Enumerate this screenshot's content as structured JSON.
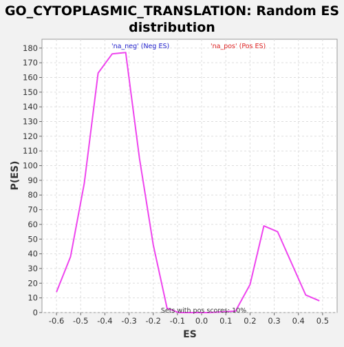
{
  "chart_data": {
    "type": "line",
    "title_lines": [
      "GO_CYTOPLASMIC_TRANSLATION: Random ES",
      "distribution"
    ],
    "xlabel": "ES",
    "ylabel": "P(ES)",
    "xlim": [
      -0.66,
      0.56
    ],
    "ylim": [
      0,
      186
    ],
    "x_ticks": [
      -0.6,
      -0.5,
      -0.4,
      -0.3,
      -0.2,
      -0.1,
      0.0,
      0.1,
      0.2,
      0.3,
      0.4,
      0.5
    ],
    "x_tick_labels": [
      "-0.6",
      "-0.5",
      "-0.4",
      "-0.3",
      "-0.2",
      "-0.1",
      "0.0",
      "0.1",
      "0.2",
      "0.3",
      "0.4",
      "0.5"
    ],
    "y_ticks": [
      0,
      10,
      20,
      30,
      40,
      50,
      60,
      70,
      80,
      90,
      100,
      110,
      120,
      130,
      140,
      150,
      160,
      170,
      180
    ],
    "grid": true,
    "legend": [
      {
        "label": "'na_neg' (Neg ES)",
        "color": "#2222cc"
      },
      {
        "label": "'na_pos' (Pos ES)",
        "color": "#dd2222"
      }
    ],
    "annotation": "Sets with pos scores: 10%",
    "series": [
      {
        "color": "#ee44ee",
        "x": [
          -0.6,
          -0.542,
          -0.485,
          -0.428,
          -0.37,
          -0.314,
          -0.257,
          -0.2,
          -0.143,
          -0.095,
          0.03,
          0.14,
          0.2,
          0.257,
          0.314,
          0.43,
          0.487
        ],
        "y": [
          14,
          38,
          88,
          163,
          176,
          177,
          105,
          46,
          3,
          0,
          0,
          1,
          19,
          59,
          55,
          12,
          8
        ]
      }
    ]
  }
}
